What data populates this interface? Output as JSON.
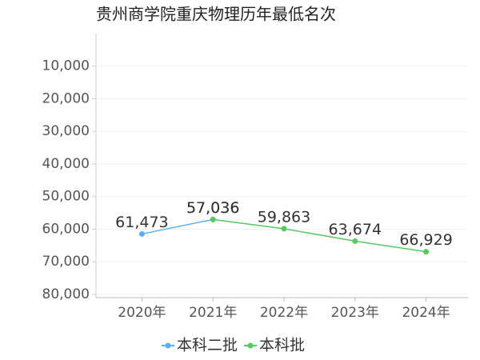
{
  "chart_data": {
    "type": "line",
    "title": "贵州商学院重庆物理历年最低名次",
    "categories": [
      "2020年",
      "2021年",
      "2022年",
      "2023年",
      "2024年"
    ],
    "series": [
      {
        "name": "本科二批",
        "color": "#5aaef3",
        "values": [
          61473,
          57036,
          null,
          null,
          null
        ]
      },
      {
        "name": "本科批",
        "color": "#58c765",
        "values": [
          null,
          57036,
          59863,
          63674,
          66929
        ]
      }
    ],
    "value_labels": [
      [
        "61,473",
        "57,036",
        null,
        null,
        null
      ],
      [
        null,
        "57,036",
        "59,863",
        "63,674",
        "66,929"
      ]
    ],
    "ylim": [
      0,
      81000
    ],
    "y_inverted": true,
    "yticks": [
      {
        "value": 10000,
        "label": "10,000"
      },
      {
        "value": 20000,
        "label": "20,000"
      },
      {
        "value": 30000,
        "label": "30,000"
      },
      {
        "value": 40000,
        "label": "40,000"
      },
      {
        "value": 50000,
        "label": "50,000"
      },
      {
        "value": 60000,
        "label": "60,000"
      },
      {
        "value": 70000,
        "label": "70,000"
      },
      {
        "value": 80000,
        "label": "80,000"
      }
    ],
    "grid": true,
    "legend": "bottom"
  }
}
